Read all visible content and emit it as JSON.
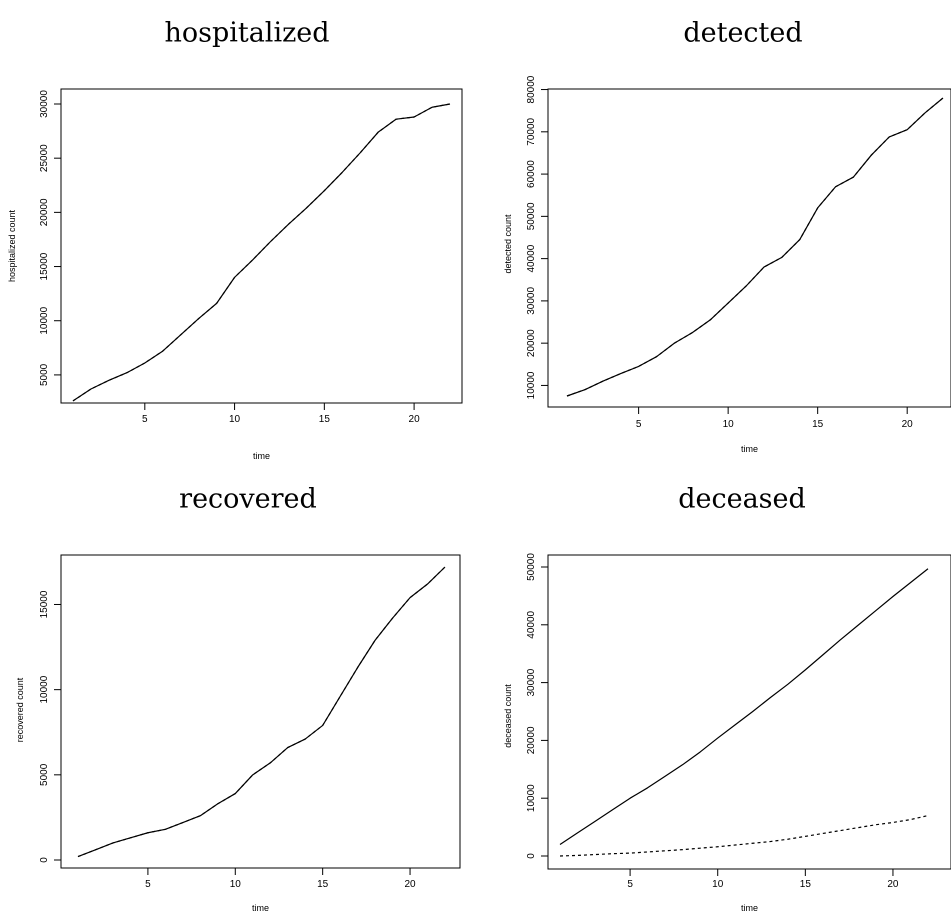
{
  "chart_data": [
    {
      "type": "line",
      "title": "hospitalized",
      "xlabel": "time",
      "ylabel": "hospitalized count",
      "xlim": [
        1,
        22
      ],
      "ylim": [
        2500,
        30000
      ],
      "x_ticks": [
        "5",
        "10",
        "15",
        "20"
      ],
      "y_ticks": [
        "5000",
        "10000",
        "15000",
        "20000",
        "25000",
        "30000"
      ],
      "series": [
        {
          "x": [
            1,
            2,
            3,
            4,
            5,
            6,
            7,
            8,
            9,
            10,
            11,
            12,
            13,
            14,
            15,
            16,
            17,
            18,
            19,
            20,
            21,
            22
          ],
          "values": [
            2600,
            3700,
            4500,
            5200,
            6100,
            7200,
            8700,
            10200,
            11600,
            14000,
            15600,
            17300,
            18900,
            20400,
            22000,
            23700,
            25500,
            27400,
            28600,
            28800,
            29700,
            30000
          ]
        },
        {
          "style": "dashed",
          "x": [
            1,
            2,
            3,
            4,
            5,
            6,
            7,
            8,
            9,
            10,
            11,
            12,
            13,
            14,
            15,
            16,
            17,
            18,
            19,
            20,
            21,
            22
          ],
          "values": [
            2600,
            3700,
            4500,
            5200,
            6100,
            7200,
            8700,
            10200,
            11600,
            14000,
            15600,
            17300,
            18900,
            20400,
            22000,
            23700,
            25500,
            27400,
            28600,
            28800,
            29700,
            30000
          ]
        }
      ]
    },
    {
      "type": "line",
      "title": "detected",
      "xlabel": "time",
      "ylabel": "detected count",
      "xlim": [
        1,
        22
      ],
      "ylim": [
        7500,
        78000
      ],
      "x_ticks": [
        "5",
        "10",
        "15",
        "20"
      ],
      "y_ticks": [
        "10000",
        "20000",
        "30000",
        "40000",
        "50000",
        "60000",
        "70000",
        "80000"
      ],
      "series": [
        {
          "x": [
            1,
            2,
            3,
            4,
            5,
            6,
            7,
            8,
            9,
            10,
            11,
            12,
            13,
            14,
            15,
            16,
            17,
            18,
            19,
            20,
            21,
            22
          ],
          "values": [
            7500,
            9000,
            11000,
            12800,
            14500,
            16800,
            20000,
            22500,
            25500,
            29500,
            33500,
            38000,
            40300,
            44500,
            52000,
            57000,
            59300,
            64500,
            68800,
            70500,
            74500,
            78000
          ]
        },
        {
          "style": "dashed",
          "x": [
            1,
            2,
            3,
            4,
            5,
            6,
            7,
            8,
            9,
            10,
            11,
            12,
            13,
            14,
            15,
            16,
            17,
            18,
            19,
            20,
            21,
            22
          ],
          "values": [
            7500,
            9000,
            11000,
            12800,
            14500,
            16800,
            20000,
            22500,
            25500,
            29500,
            33500,
            38000,
            40300,
            44500,
            52000,
            57000,
            59300,
            64500,
            68800,
            70500,
            74500,
            78000
          ]
        }
      ]
    },
    {
      "type": "line",
      "title": "recovered",
      "xlabel": "time",
      "ylabel": "recovered count",
      "xlim": [
        1,
        22
      ],
      "ylim": [
        0,
        17200
      ],
      "x_ticks": [
        "5",
        "10",
        "15",
        "20"
      ],
      "y_ticks": [
        "0",
        "5000",
        "10000",
        "15000"
      ],
      "series": [
        {
          "x": [
            1,
            2,
            3,
            4,
            5,
            6,
            7,
            8,
            9,
            10,
            11,
            12,
            13,
            14,
            15,
            16,
            17,
            18,
            19,
            20,
            21,
            22
          ],
          "values": [
            200,
            600,
            1000,
            1300,
            1600,
            1800,
            2200,
            2600,
            3300,
            3900,
            5000,
            5700,
            6600,
            7100,
            7900,
            9600,
            11300,
            12900,
            14200,
            15400,
            16200,
            17200
          ]
        },
        {
          "style": "dashed",
          "x": [
            1,
            2,
            3,
            4,
            5,
            6,
            7,
            8,
            9,
            10,
            11,
            12,
            13,
            14,
            15,
            16,
            17,
            18,
            19,
            20,
            21,
            22
          ],
          "values": [
            200,
            600,
            1000,
            1300,
            1600,
            1800,
            2200,
            2600,
            3300,
            3900,
            5000,
            5700,
            6600,
            7100,
            7900,
            9600,
            11300,
            12900,
            14200,
            15400,
            16200,
            17200
          ]
        }
      ]
    },
    {
      "type": "line",
      "title": "deceased",
      "xlabel": "time",
      "ylabel": "deceased count",
      "xlim": [
        1,
        22
      ],
      "ylim": [
        0,
        50000
      ],
      "x_ticks": [
        "5",
        "10",
        "15",
        "20"
      ],
      "y_ticks": [
        "0",
        "10000",
        "20000",
        "30000",
        "40000",
        "50000"
      ],
      "series": [
        {
          "x": [
            1,
            2,
            3,
            4,
            5,
            6,
            7,
            8,
            9,
            10,
            11,
            12,
            13,
            14,
            15,
            16,
            17,
            18,
            19,
            20,
            21,
            22
          ],
          "values": [
            2000,
            4000,
            6000,
            8000,
            10000,
            11800,
            13800,
            15800,
            18000,
            20400,
            22700,
            25000,
            27400,
            29700,
            32200,
            34800,
            37400,
            39900,
            42400,
            44900,
            47300,
            49700
          ]
        },
        {
          "style": "dashed",
          "x": [
            1,
            2,
            3,
            4,
            5,
            6,
            7,
            8,
            9,
            10,
            11,
            12,
            13,
            14,
            15,
            16,
            17,
            18,
            19,
            20,
            21,
            22
          ],
          "values": [
            0,
            100,
            250,
            400,
            500,
            700,
            900,
            1100,
            1350,
            1600,
            1900,
            2200,
            2500,
            2900,
            3400,
            3900,
            4400,
            4900,
            5400,
            5800,
            6300,
            7000
          ]
        }
      ]
    }
  ]
}
